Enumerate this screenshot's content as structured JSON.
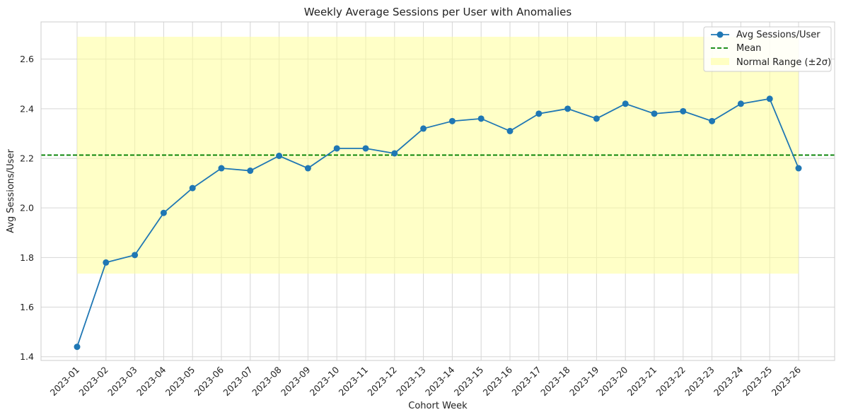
{
  "chart_data": {
    "type": "line",
    "title": "Weekly Average Sessions per User with Anomalies",
    "xlabel": "Cohort Week",
    "ylabel": "Avg Sessions/User",
    "categories": [
      "2023-01",
      "2023-02",
      "2023-03",
      "2023-04",
      "2023-05",
      "2023-06",
      "2023-07",
      "2023-08",
      "2023-09",
      "2023-10",
      "2023-11",
      "2023-12",
      "2023-13",
      "2023-14",
      "2023-15",
      "2023-16",
      "2023-17",
      "2023-18",
      "2023-19",
      "2023-20",
      "2023-21",
      "2023-22",
      "2023-23",
      "2023-24",
      "2023-25",
      "2023-26"
    ],
    "series": [
      {
        "name": "Avg Sessions/User",
        "color": "#1f77b4",
        "marker": "circle",
        "values": [
          1.44,
          1.78,
          1.81,
          1.98,
          2.08,
          2.16,
          2.15,
          2.21,
          2.16,
          2.24,
          2.24,
          2.22,
          2.32,
          2.35,
          2.36,
          2.31,
          2.38,
          2.4,
          2.36,
          2.42,
          2.38,
          2.39,
          2.35,
          2.42,
          2.44,
          2.16
        ]
      }
    ],
    "mean_line": {
      "name": "Mean",
      "value": 2.213,
      "color": "#008000",
      "style": "dashed"
    },
    "normal_range": {
      "name": "Normal Range (±2σ)",
      "low": 1.735,
      "high": 2.69,
      "color": "#ffff99"
    },
    "ylim": [
      1.385,
      2.75
    ],
    "yticks": [
      "1.4",
      "1.6",
      "1.8",
      "2.0",
      "2.2",
      "2.4",
      "2.6"
    ],
    "grid": true,
    "legend_position": "top-right"
  }
}
